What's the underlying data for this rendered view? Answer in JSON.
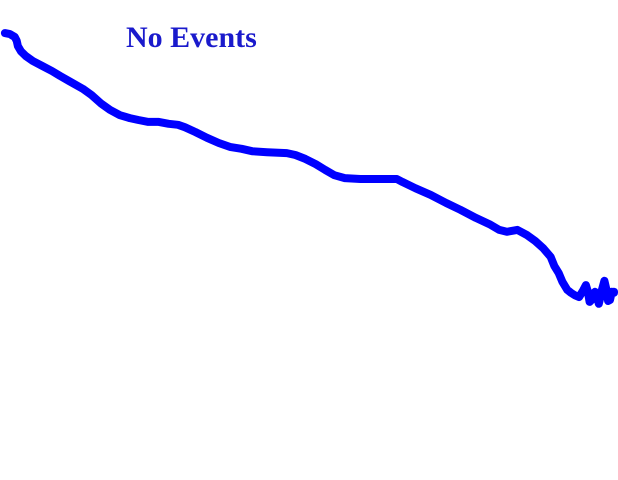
{
  "status": {
    "message": "No Events"
  },
  "colors": {
    "background": "#ffffff",
    "text": "#1a1acc",
    "trace": "#0000ff"
  },
  "trace": {
    "description_icon": "drawn-stroke",
    "points": [
      [
        0.008,
        0.931
      ],
      [
        0.016,
        0.929
      ],
      [
        0.024,
        0.923
      ],
      [
        0.027,
        0.915
      ],
      [
        0.029,
        0.904
      ],
      [
        0.034,
        0.893
      ],
      [
        0.042,
        0.883
      ],
      [
        0.053,
        0.873
      ],
      [
        0.068,
        0.863
      ],
      [
        0.084,
        0.852
      ],
      [
        0.097,
        0.842
      ],
      [
        0.112,
        0.831
      ],
      [
        0.134,
        0.815
      ],
      [
        0.148,
        0.802
      ],
      [
        0.163,
        0.785
      ],
      [
        0.178,
        0.771
      ],
      [
        0.194,
        0.76
      ],
      [
        0.21,
        0.754
      ],
      [
        0.224,
        0.75
      ],
      [
        0.24,
        0.746
      ],
      [
        0.257,
        0.746
      ],
      [
        0.273,
        0.742
      ],
      [
        0.288,
        0.74
      ],
      [
        0.299,
        0.735
      ],
      [
        0.316,
        0.725
      ],
      [
        0.335,
        0.713
      ],
      [
        0.354,
        0.702
      ],
      [
        0.372,
        0.694
      ],
      [
        0.391,
        0.69
      ],
      [
        0.408,
        0.685
      ],
      [
        0.432,
        0.683
      ],
      [
        0.464,
        0.681
      ],
      [
        0.478,
        0.677
      ],
      [
        0.494,
        0.669
      ],
      [
        0.511,
        0.658
      ],
      [
        0.526,
        0.646
      ],
      [
        0.541,
        0.635
      ],
      [
        0.558,
        0.629
      ],
      [
        0.583,
        0.627
      ],
      [
        0.613,
        0.627
      ],
      [
        0.642,
        0.627
      ],
      [
        0.651,
        0.621
      ],
      [
        0.672,
        0.608
      ],
      [
        0.697,
        0.594
      ],
      [
        0.722,
        0.577
      ],
      [
        0.745,
        0.563
      ],
      [
        0.77,
        0.546
      ],
      [
        0.792,
        0.533
      ],
      [
        0.808,
        0.521
      ],
      [
        0.82,
        0.517
      ],
      [
        0.837,
        0.521
      ],
      [
        0.853,
        0.51
      ],
      [
        0.866,
        0.498
      ],
      [
        0.879,
        0.483
      ],
      [
        0.891,
        0.465
      ],
      [
        0.897,
        0.446
      ],
      [
        0.904,
        0.431
      ],
      [
        0.91,
        0.413
      ],
      [
        0.918,
        0.396
      ],
      [
        0.924,
        0.39
      ],
      [
        0.93,
        0.385
      ],
      [
        0.937,
        0.381
      ],
      [
        0.944,
        0.396
      ],
      [
        0.948,
        0.406
      ],
      [
        0.951,
        0.394
      ],
      [
        0.954,
        0.371
      ],
      [
        0.96,
        0.379
      ],
      [
        0.963,
        0.392
      ],
      [
        0.966,
        0.383
      ],
      [
        0.969,
        0.367
      ],
      [
        0.972,
        0.383
      ],
      [
        0.974,
        0.396
      ],
      [
        0.978,
        0.415
      ],
      [
        0.981,
        0.398
      ],
      [
        0.984,
        0.373
      ],
      [
        0.987,
        0.375
      ],
      [
        0.99,
        0.392
      ],
      [
        0.993,
        0.39
      ],
      [
        0.997,
        0.392
      ],
      [
        1.0,
        0.39
      ]
    ]
  }
}
